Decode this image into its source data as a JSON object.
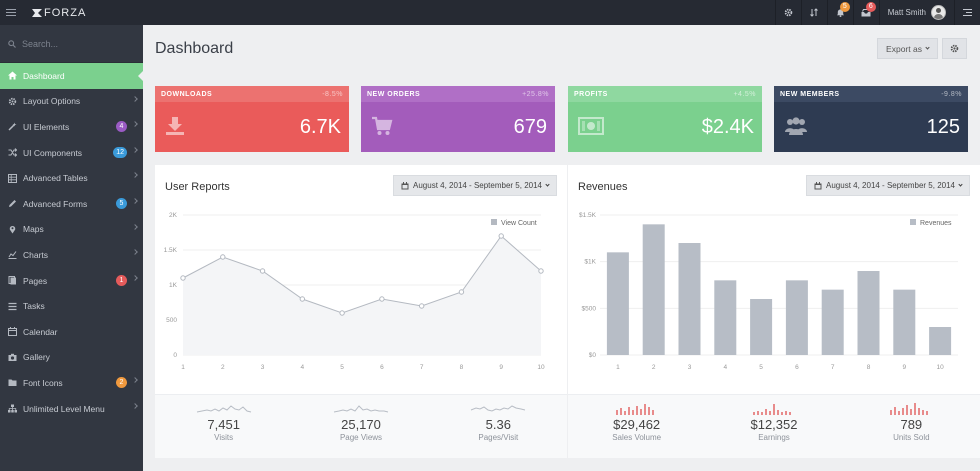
{
  "app": {
    "logo": "FORZA"
  },
  "topbar": {
    "notif_badge": "5",
    "mail_badge": "6",
    "user_name": "Matt Smith",
    "badge_colors": {
      "notif": "#f0993e",
      "mail": "#e55b5b"
    }
  },
  "sidebar": {
    "search_placeholder": "Search...",
    "items": [
      {
        "label": "Dashboard",
        "icon": "home-icon",
        "active": true
      },
      {
        "label": "Layout Options",
        "icon": "gear-icon",
        "chevron": true
      },
      {
        "label": "UI Elements",
        "icon": "wand-icon",
        "badge": "4",
        "badge_color": "#9a5bc4",
        "chevron": true
      },
      {
        "label": "UI Components",
        "icon": "shuffle-icon",
        "badge": "12",
        "badge_color": "#3a9ad9",
        "chevron": true
      },
      {
        "label": "Advanced Tables",
        "icon": "table-icon",
        "chevron": true
      },
      {
        "label": "Advanced Forms",
        "icon": "pencil-icon",
        "badge": "5",
        "badge_color": "#3a9ad9",
        "chevron": true
      },
      {
        "label": "Maps",
        "icon": "map-marker-icon",
        "chevron": true
      },
      {
        "label": "Charts",
        "icon": "chart-icon",
        "chevron": true
      },
      {
        "label": "Pages",
        "icon": "pages-icon",
        "badge": "1",
        "badge_color": "#e55b5b",
        "chevron": true
      },
      {
        "label": "Tasks",
        "icon": "tasks-icon"
      },
      {
        "label": "Calendar",
        "icon": "calendar-icon"
      },
      {
        "label": "Gallery",
        "icon": "camera-icon"
      },
      {
        "label": "Font Icons",
        "icon": "folder-icon",
        "badge": "2",
        "badge_color": "#f0993e",
        "chevron": true
      },
      {
        "label": "Unlimited Level Menu",
        "icon": "sitemap-icon",
        "chevron": true
      }
    ]
  },
  "header": {
    "title": "Dashboard",
    "export_label": "Export as"
  },
  "stats": [
    {
      "label": "DOWNLOADS",
      "pct": "-8.5%",
      "value": "6.7K",
      "color": "#ea5b5a",
      "head_color": "#ec7270",
      "icon": "download-icon"
    },
    {
      "label": "NEW ORDERS",
      "pct": "+25.8%",
      "value": "679",
      "color": "#a35cbb",
      "head_color": "#b06fc6",
      "icon": "cart-icon"
    },
    {
      "label": "PROFITS",
      "pct": "+4.5%",
      "value": "$2.4K",
      "color": "#7bd08e",
      "head_color": "#8fd8a0",
      "icon": "money-icon"
    },
    {
      "label": "NEW MEMBERS",
      "pct": "-9.8%",
      "value": "125",
      "color": "#2e3b52",
      "head_color": "#3c4a63",
      "icon": "users-icon"
    }
  ],
  "user_reports": {
    "title": "User Reports",
    "date_range": "August 4, 2014 - September 5, 2014",
    "footer": [
      {
        "value": "7,451",
        "label": "Visits"
      },
      {
        "value": "25,170",
        "label": "Page Views"
      },
      {
        "value": "5.36",
        "label": "Pages/Visit"
      }
    ]
  },
  "revenues": {
    "title": "Revenues",
    "date_range": "August 4, 2014 - September 5, 2014",
    "footer": [
      {
        "value": "$29,462",
        "label": "Sales Volume"
      },
      {
        "value": "$12,352",
        "label": "Earnings"
      },
      {
        "value": "789",
        "label": "Units Sold"
      }
    ]
  },
  "chart_data": [
    {
      "type": "line",
      "title": "User Reports",
      "x": [
        1,
        2,
        3,
        4,
        5,
        6,
        7,
        8,
        9,
        10
      ],
      "series": [
        {
          "name": "View Count",
          "values": [
            1100,
            1400,
            1200,
            800,
            600,
            800,
            700,
            900,
            1700,
            1200
          ]
        }
      ],
      "yticks": [
        "0",
        "500",
        "1K",
        "1.5K",
        "2K"
      ],
      "ylim": [
        0,
        2000
      ],
      "legend": "top-right",
      "color": "#b4b9c1"
    },
    {
      "type": "bar",
      "title": "Revenues",
      "categories": [
        "1",
        "2",
        "3",
        "4",
        "5",
        "6",
        "7",
        "8",
        "9",
        "10"
      ],
      "series": [
        {
          "name": "Revenues",
          "values": [
            1100,
            1400,
            1200,
            800,
            600,
            800,
            700,
            900,
            700,
            300
          ]
        }
      ],
      "yticks": [
        "$0",
        "$500",
        "$1K",
        "$1.5K"
      ],
      "ylim": [
        0,
        1500
      ],
      "legend": "top-right",
      "color": "#b7bdc6"
    }
  ]
}
